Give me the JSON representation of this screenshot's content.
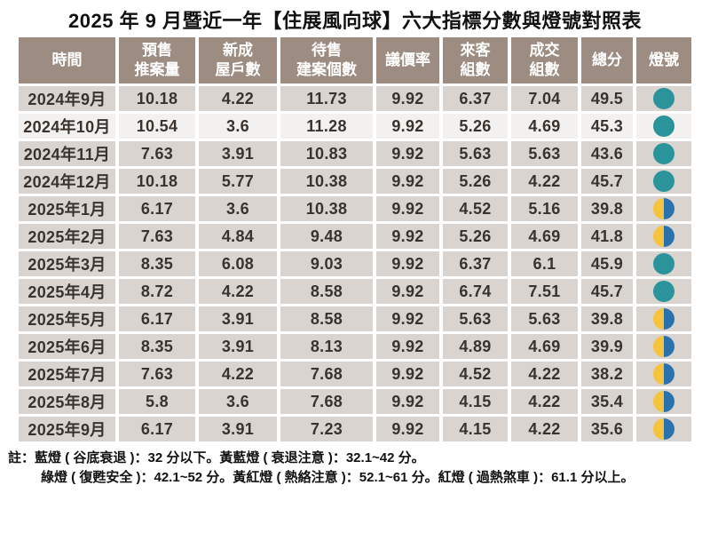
{
  "title": "2025 年 9 月暨近一年【住展風向球】六大指標分數與燈號對照表",
  "chart_data": {
    "type": "table",
    "title": "2025 年 9 月暨近一年【住展風向球】六大指標分數與燈號對照表",
    "columns": [
      "時間",
      "預售推案量",
      "新成屋戶數",
      "待售建案個數",
      "議價率",
      "來客組數",
      "成交組數",
      "總分",
      "燈號"
    ],
    "header_lines": [
      [
        "時間"
      ],
      [
        "預售",
        "推案量"
      ],
      [
        "新成",
        "屋戶數"
      ],
      [
        "待售",
        "建案個數"
      ],
      [
        "議價率"
      ],
      [
        "來客",
        "組數"
      ],
      [
        "成交",
        "組數"
      ],
      [
        "總分"
      ],
      [
        "燈號"
      ]
    ],
    "rows": [
      {
        "time": "2024年9月",
        "values": [
          "10.18",
          "4.22",
          "11.73",
          "9.92",
          "6.37",
          "7.04",
          "49.5"
        ],
        "light": "green",
        "light_label": "綠燈"
      },
      {
        "time": "2024年10月",
        "values": [
          "10.54",
          "3.6",
          "11.28",
          "9.92",
          "5.26",
          "4.69",
          "45.3"
        ],
        "light": "green",
        "light_label": "綠燈"
      },
      {
        "time": "2024年11月",
        "values": [
          "7.63",
          "3.91",
          "10.83",
          "9.92",
          "5.63",
          "5.63",
          "43.6"
        ],
        "light": "green",
        "light_label": "綠燈"
      },
      {
        "time": "2024年12月",
        "values": [
          "10.18",
          "5.77",
          "10.38",
          "9.92",
          "5.26",
          "4.22",
          "45.7"
        ],
        "light": "green",
        "light_label": "綠燈"
      },
      {
        "time": "2025年1月",
        "values": [
          "6.17",
          "3.6",
          "10.38",
          "9.92",
          "4.52",
          "5.16",
          "39.8"
        ],
        "light": "yellow-blue",
        "light_label": "黃藍燈"
      },
      {
        "time": "2025年2月",
        "values": [
          "7.63",
          "4.84",
          "9.48",
          "9.92",
          "5.26",
          "4.69",
          "41.8"
        ],
        "light": "yellow-blue",
        "light_label": "黃藍燈"
      },
      {
        "time": "2025年3月",
        "values": [
          "8.35",
          "6.08",
          "9.03",
          "9.92",
          "6.37",
          "6.1",
          "45.9"
        ],
        "light": "green",
        "light_label": "綠燈"
      },
      {
        "time": "2025年4月",
        "values": [
          "8.72",
          "4.22",
          "8.58",
          "9.92",
          "6.74",
          "7.51",
          "45.7"
        ],
        "light": "green",
        "light_label": "綠燈"
      },
      {
        "time": "2025年5月",
        "values": [
          "6.17",
          "3.91",
          "8.58",
          "9.92",
          "5.63",
          "5.63",
          "39.8"
        ],
        "light": "yellow-blue",
        "light_label": "黃藍燈"
      },
      {
        "time": "2025年6月",
        "values": [
          "8.35",
          "3.91",
          "8.13",
          "9.92",
          "4.89",
          "4.69",
          "39.9"
        ],
        "light": "yellow-blue",
        "light_label": "黃藍燈"
      },
      {
        "time": "2025年7月",
        "values": [
          "7.63",
          "4.22",
          "7.68",
          "9.92",
          "4.52",
          "4.22",
          "38.2"
        ],
        "light": "yellow-blue",
        "light_label": "黃藍燈"
      },
      {
        "time": "2025年8月",
        "values": [
          "5.8",
          "3.6",
          "7.68",
          "9.92",
          "4.15",
          "4.22",
          "35.4"
        ],
        "light": "yellow-blue",
        "light_label": "黃藍燈"
      },
      {
        "time": "2025年9月",
        "values": [
          "6.17",
          "3.91",
          "7.23",
          "9.92",
          "4.15",
          "4.22",
          "35.6"
        ],
        "light": "yellow-blue",
        "light_label": "黃藍燈"
      }
    ],
    "light_colors": {
      "green": "#2a949a",
      "yellow": "#f5c33d",
      "blue": "#2a72ad",
      "header_bg": "#9c8c81",
      "row_bg": "#d9d4d0",
      "row_alt_bg": "#f3f1ef"
    },
    "notes": [
      "註：藍燈 ( 谷底衰退 )：32 分以下。黃藍燈 ( 衰退注意 )：32.1~42 分。",
      "綠燈 ( 復甦安全 )：42.1~52 分。黃紅燈 ( 熱絡注意 )：52.1~61 分。紅燈 ( 過熱煞車 )：61.1 分以上。"
    ],
    "legend_position": "bottom",
    "grid": true
  }
}
